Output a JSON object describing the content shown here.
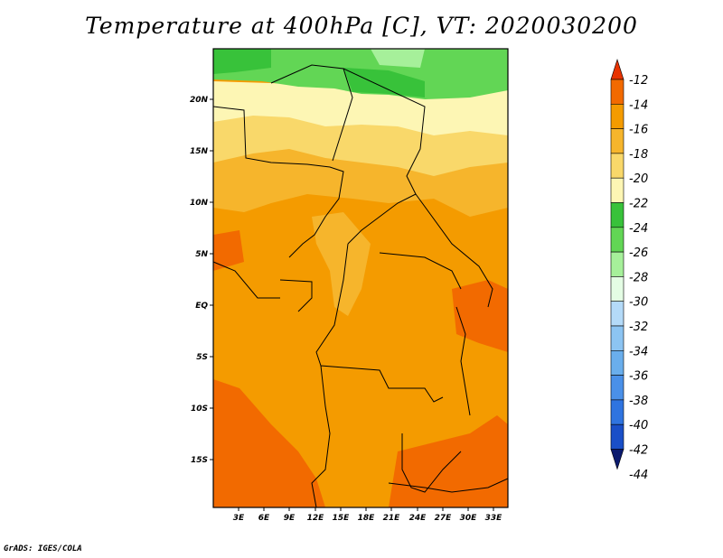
{
  "title": "Temperature at 400hPa [C], VT: 2020030200",
  "footer": "GrADS: IGES/COLA",
  "map": {
    "lat_labels": [
      "20N",
      "15N",
      "10N",
      "5N",
      "EQ",
      "5S",
      "10S",
      "15S"
    ],
    "lon_labels": [
      "3E",
      "6E",
      "9E",
      "12E",
      "15E",
      "18E",
      "21E",
      "24E",
      "27E",
      "30E",
      "33E"
    ]
  },
  "colorbar": {
    "labels": [
      "-12",
      "-14",
      "-16",
      "-18",
      "-20",
      "-22",
      "-24",
      "-26",
      "-28",
      "-30",
      "-32",
      "-34",
      "-36",
      "-38",
      "-40",
      "-42",
      "-44"
    ],
    "colors": [
      "#e83300",
      "#f26a00",
      "#f49b00",
      "#f6b52c",
      "#f9d86a",
      "#fdf6b4",
      "#38c23a",
      "#62d655",
      "#a6f09a",
      "#e4fde4",
      "#b4daf8",
      "#8cc4f2",
      "#6aaeec",
      "#4a90e8",
      "#2f74e0",
      "#1a4fc8",
      "#0b1a6e"
    ]
  }
}
